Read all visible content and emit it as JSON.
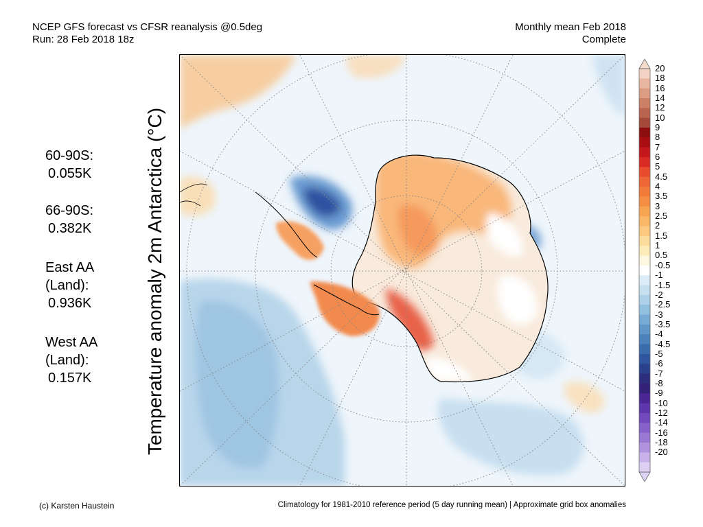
{
  "header": {
    "left_line1": "NCEP GFS forecast vs CFSR reanalysis @0.5deg",
    "left_line2": "Run: 28 Feb 2018 18z",
    "right_line1": "Monthly mean Feb 2018",
    "right_line2": "Complete"
  },
  "map_title": "Temperature anomaly 2m Antarctica (°C)",
  "stats": [
    {
      "lines": [
        "60-90S:",
        "0.055K"
      ]
    },
    {
      "lines": [
        "66-90S:",
        "0.382K"
      ]
    },
    {
      "lines": [
        "East AA",
        "(Land):",
        "0.936K"
      ]
    },
    {
      "lines": [
        "West AA",
        "(Land):",
        "0.157K"
      ]
    }
  ],
  "colorbar": {
    "labels": [
      "20",
      "18",
      "16",
      "14",
      "12",
      "10",
      "9",
      "8",
      "7",
      "6",
      "5",
      "4.5",
      "4",
      "3.5",
      "3",
      "2.5",
      "2",
      "1.5",
      "1",
      "0.5",
      "-0.5",
      "-1",
      "-1.5",
      "-2",
      "-2.5",
      "-3",
      "-3.5",
      "-4",
      "-4.5",
      "-5",
      "-6",
      "-7",
      "-8",
      "-9",
      "-10",
      "-12",
      "-14",
      "-16",
      "-18",
      "-20"
    ],
    "colors": [
      "#f4d3c4",
      "#e9b7a1",
      "#dc9d83",
      "#cb8066",
      "#b8644e",
      "#a4483a",
      "#8b0d0d",
      "#a90d12",
      "#c3171c",
      "#d92b24",
      "#e84c2d",
      "#ef6636",
      "#f27b3a",
      "#f58f44",
      "#f8a551",
      "#f9b767",
      "#fbca80",
      "#fcdc9c",
      "#fdebb9",
      "#fdf6e0",
      "#ffffff",
      "#ddedf8",
      "#c6e0f0",
      "#acd1e8",
      "#92c0df",
      "#78acd4",
      "#6097c8",
      "#4b82bb",
      "#3b6cad",
      "#2e559d",
      "#29418d",
      "#2c2d7c",
      "#33217a",
      "#4a2795",
      "#5d36ab",
      "#7149bd",
      "#8661c9",
      "#9a79d4",
      "#b093de",
      "#c8b2e9",
      "#ddd0f3"
    ],
    "top_arrow_color": "#f6dccd",
    "bottom_arrow_color": "#dcd3f6"
  },
  "footer": {
    "left": "(c) Karsten Haustein",
    "right": "Climatology for 1981-2010 reference period (5 day running mean) | Approximate grid box anomalies"
  }
}
